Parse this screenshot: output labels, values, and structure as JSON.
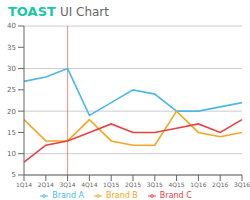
{
  "chart_data": {
    "type": "line",
    "title": "TOAST",
    "subtitle": "UI Chart",
    "categories": [
      "1Q14",
      "2Q14",
      "3Q14",
      "4Q14",
      "1Q15",
      "2Q15",
      "3Q15",
      "4Q15",
      "1Q16",
      "2Q16",
      "3Q16"
    ],
    "series": [
      {
        "name": "Brand A",
        "color": "#4db8e8",
        "values": [
          27,
          28,
          30,
          19,
          22,
          25,
          24,
          20,
          20,
          21,
          22
        ]
      },
      {
        "name": "Brand B",
        "color": "#f5a623",
        "values": [
          18,
          13,
          13,
          18,
          13,
          12,
          12,
          20,
          15,
          14,
          15
        ]
      },
      {
        "name": "Brand C",
        "color": "#e84040",
        "values": [
          8,
          12,
          13,
          15,
          17,
          15,
          15,
          16,
          17,
          15,
          18
        ]
      }
    ],
    "ylim": [
      5,
      40
    ],
    "yticks": [
      5,
      10,
      15,
      20,
      25,
      30,
      35,
      40
    ],
    "grid": true,
    "legend": "bottom",
    "annotations": [
      {
        "type": "vline",
        "x": "3Q14",
        "color": "#e84040"
      }
    ]
  }
}
